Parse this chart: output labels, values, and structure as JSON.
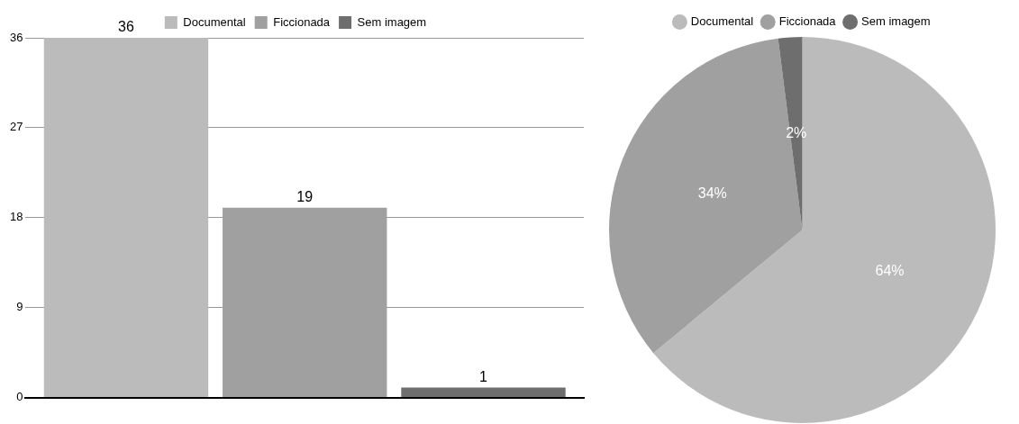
{
  "chart_data": [
    {
      "type": "bar",
      "categories": [
        null
      ],
      "series": [
        {
          "name": "Documental",
          "color": "#bbbbbb",
          "values": [
            36
          ]
        },
        {
          "name": "Ficcionada",
          "color": "#a0a0a0",
          "values": [
            19
          ]
        },
        {
          "name": "Sem imagem",
          "color": "#6e6e6e",
          "values": [
            1
          ]
        }
      ],
      "ylim": [
        0,
        36
      ],
      "yticks": [
        0,
        9,
        18,
        27,
        36
      ],
      "grid": "y",
      "legend": "top",
      "data_labels": true
    },
    {
      "type": "pie",
      "categories": [
        "Documental",
        "Ficcionada",
        "Sem imagem"
      ],
      "values": [
        64,
        34,
        2
      ],
      "colors": [
        "#bbbbbb",
        "#a0a0a0",
        "#6e6e6e"
      ],
      "legend": "top",
      "value_labels": [
        "64%",
        "34%",
        "2%"
      ]
    }
  ]
}
